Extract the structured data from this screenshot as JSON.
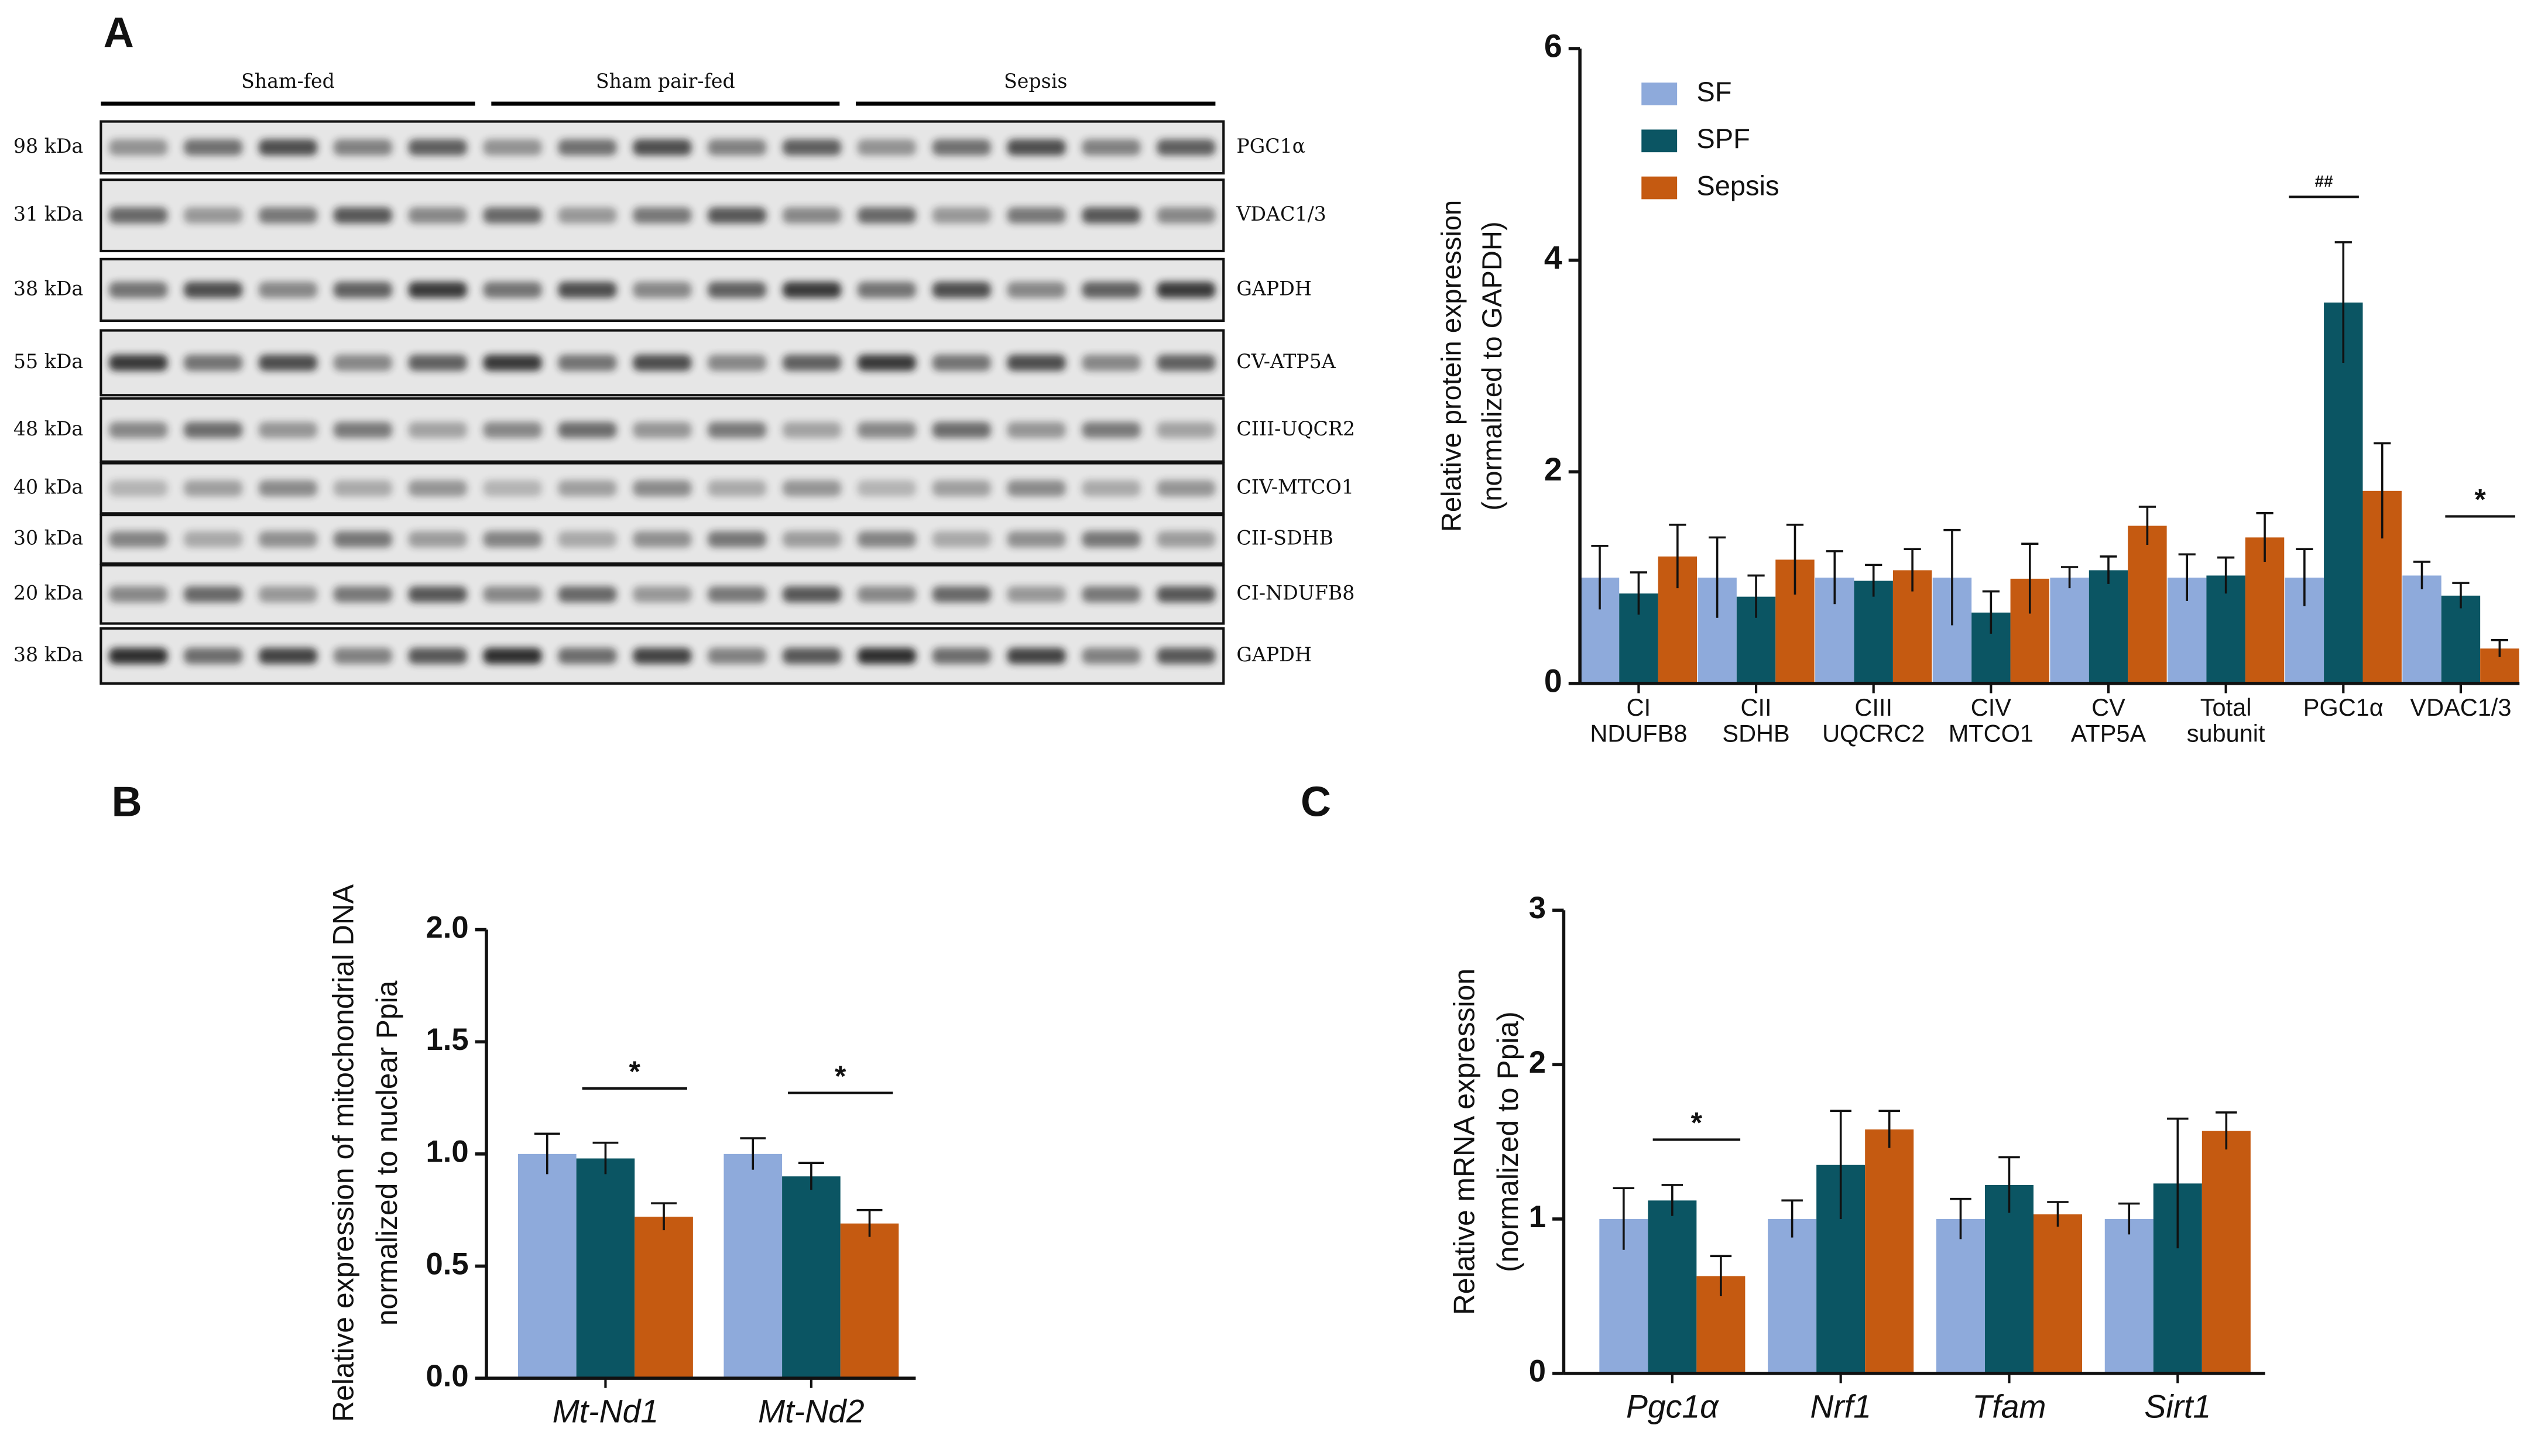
{
  "panels": [
    "A",
    "B",
    "C"
  ],
  "blot": {
    "groups": [
      "Sham-fed",
      "Sham pair-fed",
      "Sepsis"
    ],
    "rows": [
      {
        "kda": "98 kDa",
        "protein": "PGC1α"
      },
      {
        "kda": "31 kDa",
        "protein": "VDAC1/3"
      },
      {
        "kda": "38 kDa",
        "protein": "GAPDH"
      },
      {
        "kda": "55 kDa",
        "protein": "CV-ATP5A"
      },
      {
        "kda": "48 kDa",
        "protein": "CIII-UQCR2"
      },
      {
        "kda": "40 kDa",
        "protein": "CIV-MTCO1"
      },
      {
        "kda": "30 kDa",
        "protein": "CII-SDHB"
      },
      {
        "kda": "20 kDa",
        "protein": "CI-NDUFB8"
      },
      {
        "kda": "38 kDa",
        "protein": "GAPDH"
      }
    ]
  },
  "chart_data": [
    {
      "type": "bar",
      "ylabel": [
        "Relative protein expression",
        "(normalized to GAPDH)"
      ],
      "categories": [
        [
          "CI",
          "NDUFB8"
        ],
        [
          "CII",
          "SDHB"
        ],
        [
          "CIII",
          "UQCRC2"
        ],
        [
          "CIV",
          "MTCO1"
        ],
        [
          "CV",
          "ATP5A"
        ],
        [
          "Total",
          "subunit"
        ],
        [
          "PGC1α"
        ],
        [
          "VDAC1/3"
        ]
      ],
      "series": [
        {
          "name": "SF",
          "color": "#8eaadb",
          "values": [
            1.0,
            1.0,
            1.0,
            1.0,
            1.0,
            1.0,
            1.0,
            1.02
          ],
          "errors": [
            0.3,
            0.38,
            0.25,
            0.45,
            0.1,
            0.22,
            0.27,
            0.13
          ]
        },
        {
          "name": "SPF",
          "color": "#0b5563",
          "values": [
            0.85,
            0.82,
            0.97,
            0.67,
            1.07,
            1.02,
            3.6,
            0.83
          ],
          "errors": [
            0.2,
            0.2,
            0.15,
            0.2,
            0.13,
            0.17,
            0.57,
            0.12
          ]
        },
        {
          "name": "Sepsis",
          "color": "#c55a11",
          "values": [
            1.2,
            1.17,
            1.07,
            0.99,
            1.49,
            1.38,
            1.82,
            0.33
          ],
          "errors": [
            0.3,
            0.33,
            0.2,
            0.33,
            0.18,
            0.23,
            0.45,
            0.08
          ]
        }
      ],
      "ylim": [
        0,
        6
      ],
      "yticks": [
        0,
        2,
        4,
        6
      ],
      "legend": "upper left",
      "annotations": [
        {
          "text": "##",
          "at": 6,
          "between": [
            "SF",
            "SPF"
          ]
        },
        {
          "text": "*",
          "at": 7,
          "between": [
            "SPF",
            "Sepsis"
          ]
        }
      ]
    },
    {
      "type": "bar",
      "ylabel": [
        "Relative expression of mitochondrial DNA",
        "normalized to nuclear Ppia"
      ],
      "categories": [
        "Mt-Nd1",
        "Mt-Nd2"
      ],
      "series": [
        {
          "name": "SF",
          "color": "#8eaadb",
          "values": [
            1.0,
            1.0
          ],
          "errors": [
            0.09,
            0.07
          ]
        },
        {
          "name": "SPF",
          "color": "#0b5563",
          "values": [
            0.98,
            0.9
          ],
          "errors": [
            0.07,
            0.06
          ]
        },
        {
          "name": "Sepsis",
          "color": "#c55a11",
          "values": [
            0.72,
            0.69
          ],
          "errors": [
            0.06,
            0.06
          ]
        }
      ],
      "ylim": [
        0,
        2
      ],
      "yticks": [
        {
          "value": 0,
          "label": "0.0"
        },
        {
          "value": 0.5,
          "label": "0.5"
        },
        {
          "value": 1,
          "label": "1.0"
        },
        {
          "value": 1.5,
          "label": "1.5"
        },
        {
          "value": 2,
          "label": "2.0"
        }
      ],
      "annotations": [
        {
          "text": "*",
          "at": 0,
          "between": [
            "SPF",
            "Sepsis"
          ]
        },
        {
          "text": "*",
          "at": 1,
          "between": [
            "SPF",
            "Sepsis"
          ]
        }
      ]
    },
    {
      "type": "bar",
      "ylabel": [
        "Relative mRNA expression",
        "(normalized to Ppia)"
      ],
      "categories": [
        "Pgc1α",
        "Nrf1",
        "Tfam",
        "Sirt1"
      ],
      "series": [
        {
          "name": "SF",
          "color": "#8eaadb",
          "values": [
            1.0,
            1.0,
            1.0,
            1.0
          ],
          "errors": [
            0.2,
            0.12,
            0.13,
            0.1
          ]
        },
        {
          "name": "SPF",
          "color": "#0b5563",
          "values": [
            1.12,
            1.35,
            1.22,
            1.23
          ],
          "errors": [
            0.1,
            0.35,
            0.18,
            0.42
          ]
        },
        {
          "name": "Sepsis",
          "color": "#c55a11",
          "values": [
            0.63,
            1.58,
            1.03,
            1.57
          ],
          "errors": [
            0.13,
            0.12,
            0.08,
            0.12
          ]
        }
      ],
      "ylim": [
        0,
        3
      ],
      "yticks": [
        0,
        1,
        2,
        3
      ],
      "annotations": [
        {
          "text": "*",
          "at": 0,
          "between": [
            "SPF",
            "Sepsis"
          ]
        }
      ]
    }
  ]
}
